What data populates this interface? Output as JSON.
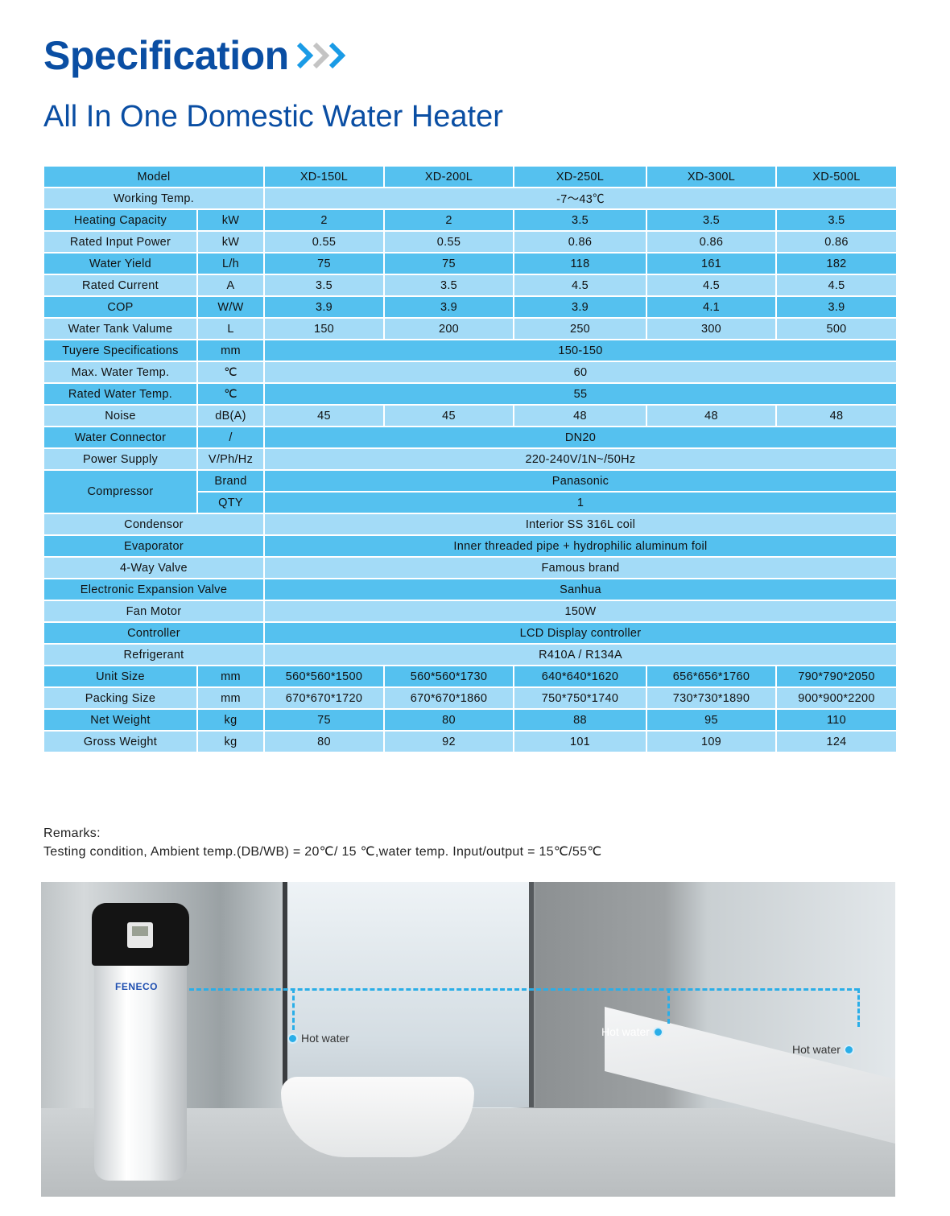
{
  "header": {
    "title": "Specification",
    "subtitle": "All In One Domestic Water Heater",
    "chevron_icon": "triple-chevron-right-icon",
    "colors": {
      "title": "#0a4ea3",
      "chevron_blue": "#1a9be6",
      "chevron_gray": "#c4c4c4"
    }
  },
  "table": {
    "colors": {
      "dark_row": "#55c1ef",
      "light_row": "#a3dbf7"
    },
    "header": {
      "label": "Model",
      "models": [
        "XD-150L",
        "XD-200L",
        "XD-250L",
        "XD-300L",
        "XD-500L"
      ]
    },
    "rows": [
      {
        "label": "Working Temp.",
        "unit": null,
        "values": [
          "-7～43℃"
        ]
      },
      {
        "label": "Heating Capacity",
        "unit": "kW",
        "values": [
          "2",
          "2",
          "3.5",
          "3.5",
          "3.5"
        ]
      },
      {
        "label": "Rated Input Power",
        "unit": "kW",
        "values": [
          "0.55",
          "0.55",
          "0.86",
          "0.86",
          "0.86"
        ]
      },
      {
        "label": "Water Yield",
        "unit": "L/h",
        "values": [
          "75",
          "75",
          "118",
          "161",
          "182"
        ]
      },
      {
        "label": "Rated Current",
        "unit": "A",
        "values": [
          "3.5",
          "3.5",
          "4.5",
          "4.5",
          "4.5"
        ]
      },
      {
        "label": "COP",
        "unit": "W/W",
        "values": [
          "3.9",
          "3.9",
          "3.9",
          "4.1",
          "3.9"
        ]
      },
      {
        "label": "Water Tank Valume",
        "unit": "L",
        "values": [
          "150",
          "200",
          "250",
          "300",
          "500"
        ]
      },
      {
        "label": "Tuyere Specifications",
        "unit": "mm",
        "values": [
          "150-150"
        ]
      },
      {
        "label": "Max. Water Temp.",
        "unit": "℃",
        "values": [
          "60"
        ]
      },
      {
        "label": "Rated Water Temp.",
        "unit": "℃",
        "values": [
          "55"
        ]
      },
      {
        "label": "Noise",
        "unit": "dB(A)",
        "values": [
          "45",
          "45",
          "48",
          "48",
          "48"
        ]
      },
      {
        "label": "Water Connector",
        "unit": "/",
        "values": [
          "DN20"
        ]
      },
      {
        "label": "Power Supply",
        "unit": "V/Ph/Hz",
        "values": [
          "220-240V/1N~/50Hz"
        ]
      },
      {
        "label": "Compressor",
        "unit": "Brand",
        "values": [
          "Panasonic"
        ],
        "group_start": true
      },
      {
        "label": null,
        "unit": "QTY",
        "values": [
          "1"
        ],
        "group_cont": true
      },
      {
        "label": "Condensor",
        "unit": null,
        "values": [
          "Interior SS 316L coil"
        ]
      },
      {
        "label": "Evaporator",
        "unit": null,
        "values": [
          "Inner threaded pipe + hydrophilic aluminum foil"
        ]
      },
      {
        "label": "4-Way Valve",
        "unit": null,
        "values": [
          "Famous brand"
        ]
      },
      {
        "label": "Electronic Expansion Valve",
        "unit": null,
        "values": [
          "Sanhua"
        ]
      },
      {
        "label": "Fan Motor",
        "unit": null,
        "values": [
          "150W"
        ]
      },
      {
        "label": "Controller",
        "unit": null,
        "values": [
          "LCD Display controller"
        ]
      },
      {
        "label": "Refrigerant",
        "unit": null,
        "values": [
          "R410A / R134A"
        ]
      },
      {
        "label": "Unit Size",
        "unit": "mm",
        "values": [
          "560*560*1500",
          "560*560*1730",
          "640*640*1620",
          "656*656*1760",
          "790*790*2050"
        ]
      },
      {
        "label": "Packing Size",
        "unit": "mm",
        "values": [
          "670*670*1720",
          "670*670*1860",
          "750*750*1740",
          "730*730*1890",
          "900*900*2200"
        ]
      },
      {
        "label": "Net Weight",
        "unit": "kg",
        "values": [
          "75",
          "80",
          "88",
          "95",
          "110"
        ]
      },
      {
        "label": "Gross Weight",
        "unit": "kg",
        "values": [
          "80",
          "92",
          "101",
          "109",
          "124"
        ]
      }
    ]
  },
  "remarks": {
    "title": "Remarks:",
    "text": "Testing condition, Ambient temp.(DB/WB) = 20℃/ 15 ℃,water temp. Input/output = 15℃/55℃"
  },
  "photo": {
    "brand_logo": "FENECO",
    "labels": [
      "Hot  water",
      "Hot  water",
      "Hot  water"
    ],
    "line_color": "#2aaee8"
  }
}
